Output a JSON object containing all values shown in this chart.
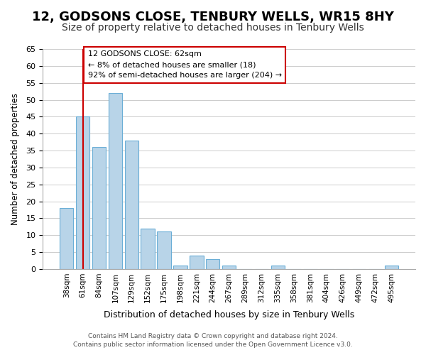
{
  "title": "12, GODSONS CLOSE, TENBURY WELLS, WR15 8HY",
  "subtitle": "Size of property relative to detached houses in Tenbury Wells",
  "xlabel": "Distribution of detached houses by size in Tenbury Wells",
  "ylabel": "Number of detached properties",
  "bar_labels": [
    "38sqm",
    "61sqm",
    "84sqm",
    "107sqm",
    "129sqm",
    "152sqm",
    "175sqm",
    "198sqm",
    "221sqm",
    "244sqm",
    "267sqm",
    "289sqm",
    "312sqm",
    "335sqm",
    "358sqm",
    "381sqm",
    "404sqm",
    "426sqm",
    "449sqm",
    "472sqm",
    "495sqm"
  ],
  "bar_heights": [
    18,
    45,
    36,
    52,
    38,
    12,
    11,
    1,
    4,
    3,
    1,
    0,
    0,
    1,
    0,
    0,
    0,
    0,
    0,
    0,
    1
  ],
  "bar_color": "#b8d4e8",
  "bar_edge_color": "#6aaed6",
  "vline_x": 1,
  "vline_color": "#cc0000",
  "ylim": [
    0,
    65
  ],
  "yticks": [
    0,
    5,
    10,
    15,
    20,
    25,
    30,
    35,
    40,
    45,
    50,
    55,
    60,
    65
  ],
  "annotation_title": "12 GODSONS CLOSE: 62sqm",
  "annotation_line1": "← 8% of detached houses are smaller (18)",
  "annotation_line2": "92% of semi-detached houses are larger (204) →",
  "annotation_box_color": "#ffffff",
  "annotation_box_edge": "#cc0000",
  "footer_line1": "Contains HM Land Registry data © Crown copyright and database right 2024.",
  "footer_line2": "Contains public sector information licensed under the Open Government Licence v3.0.",
  "background_color": "#ffffff",
  "grid_color": "#cccccc",
  "title_fontsize": 13,
  "subtitle_fontsize": 10
}
